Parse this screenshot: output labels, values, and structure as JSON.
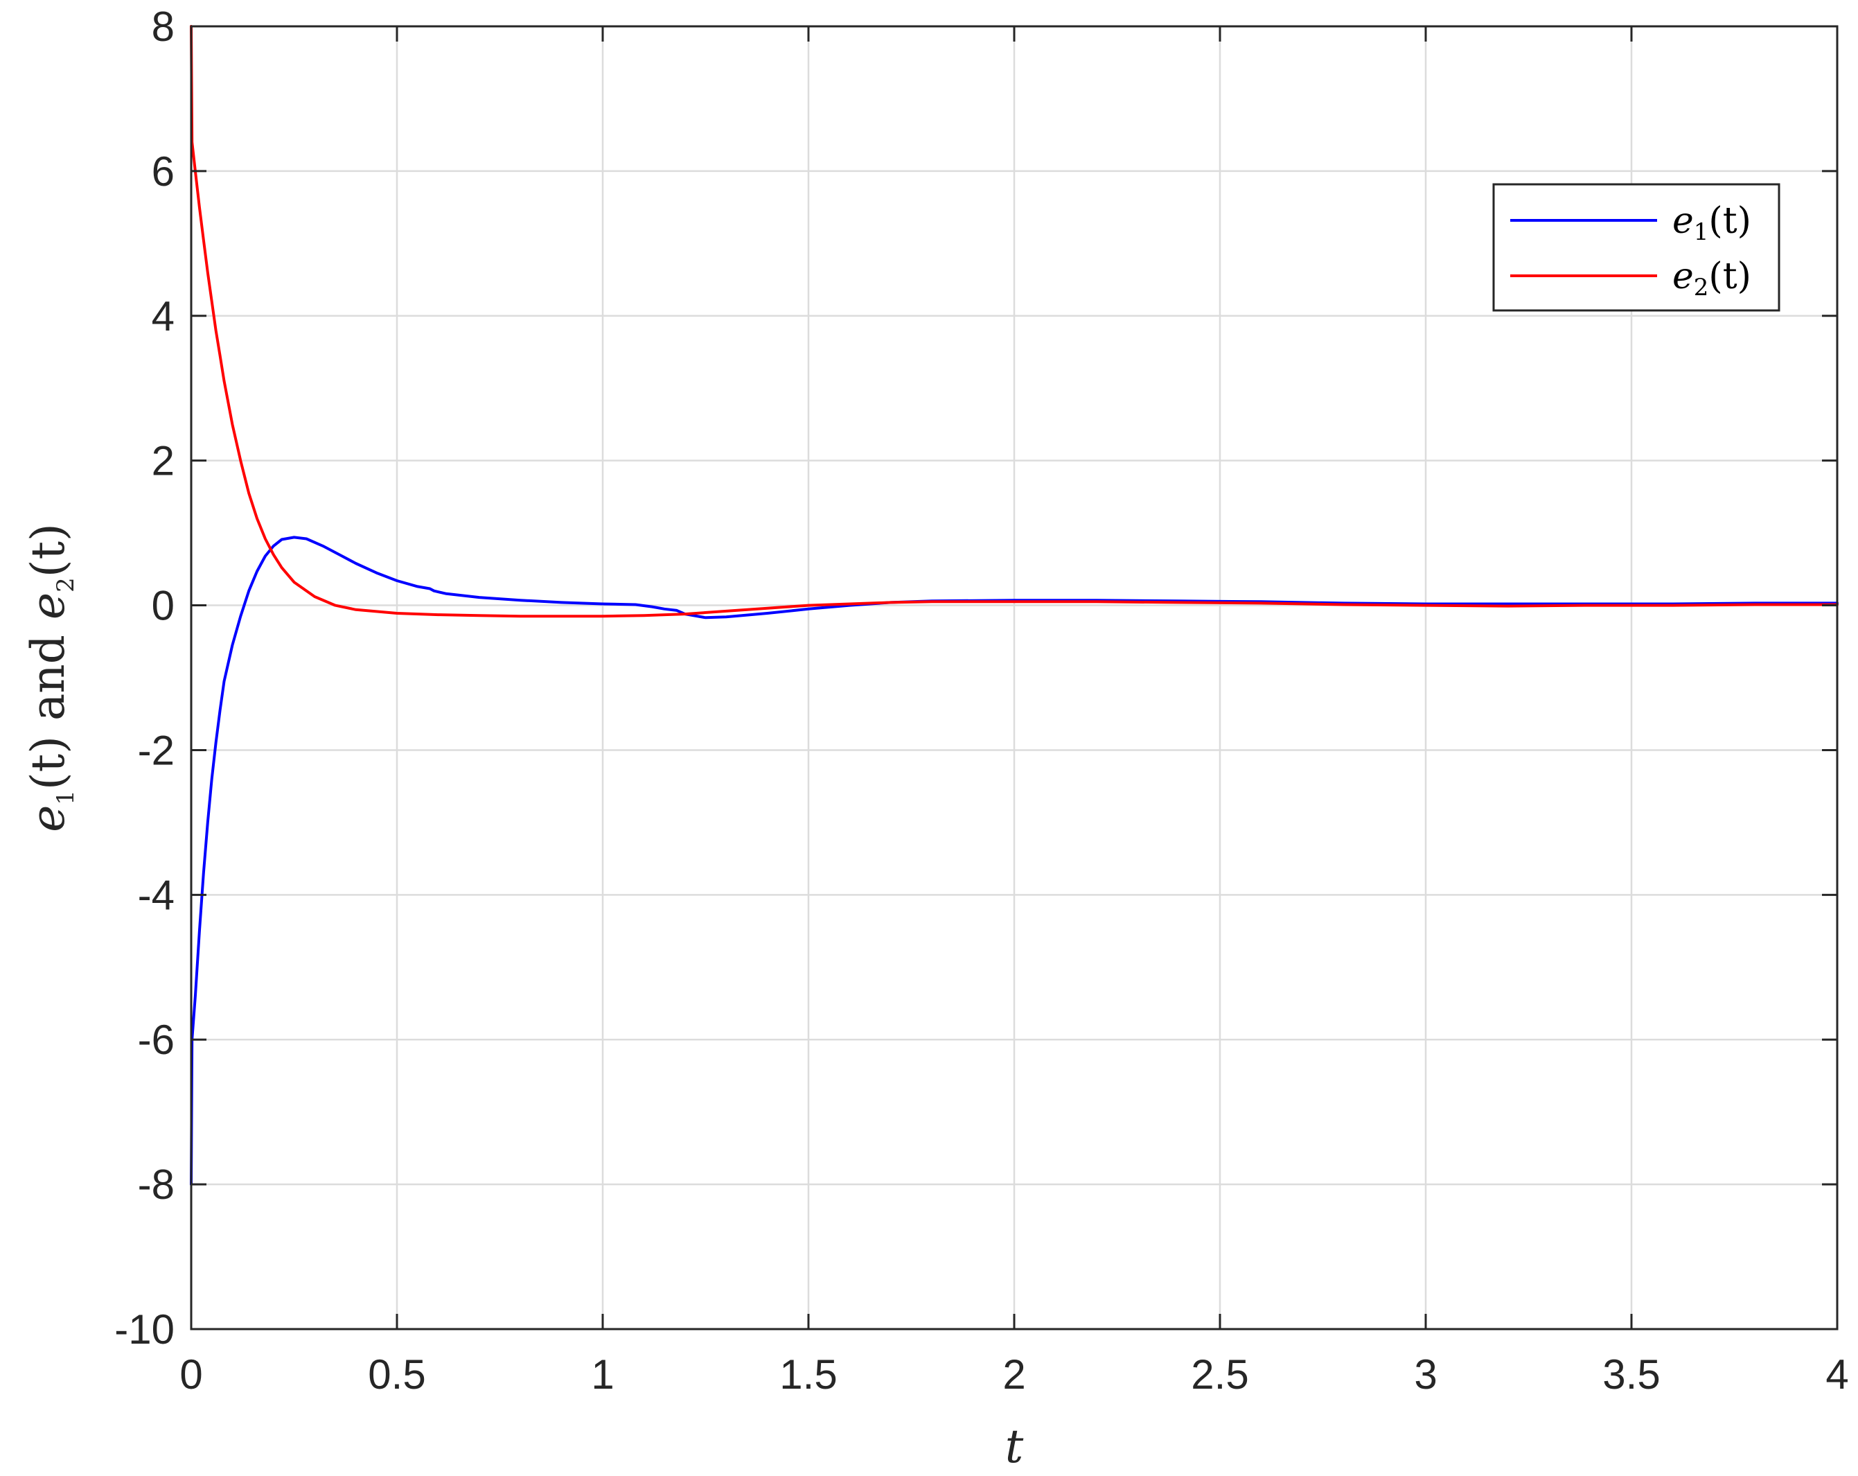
{
  "chart_data": {
    "type": "line",
    "xlabel": "t",
    "ylabel": "e1(t) and e2(t)",
    "ylabel_parts": {
      "a": "e",
      "a_sub": "1",
      "a_arg": "(t)",
      "mid": "and",
      "b": "e",
      "b_sub": "2",
      "b_arg": "(t)"
    },
    "xlim": [
      0,
      4
    ],
    "ylim": [
      -10,
      8
    ],
    "xticks": [
      "0",
      "0.5",
      "1",
      "1.5",
      "2",
      "2.5",
      "3",
      "3.5",
      "4"
    ],
    "yticks": [
      "8",
      "6",
      "4",
      "2",
      "0",
      "-2",
      "-4",
      "-6",
      "-8",
      "-10"
    ],
    "grid": true,
    "legend_position": "top-right",
    "series": [
      {
        "name": "e1(t)",
        "legend_parts": {
          "base": "e",
          "sub": "1",
          "arg": "(t)"
        },
        "color": "#0000ff",
        "points": [
          [
            0,
            -8
          ],
          [
            0.002,
            -6.0
          ],
          [
            0.01,
            -5.4
          ],
          [
            0.02,
            -4.5
          ],
          [
            0.03,
            -3.7
          ],
          [
            0.04,
            -3.0
          ],
          [
            0.05,
            -2.4
          ],
          [
            0.06,
            -1.9
          ],
          [
            0.07,
            -1.45
          ],
          [
            0.08,
            -1.05
          ],
          [
            0.1,
            -0.55
          ],
          [
            0.12,
            -0.15
          ],
          [
            0.14,
            0.2
          ],
          [
            0.16,
            0.47
          ],
          [
            0.18,
            0.68
          ],
          [
            0.2,
            0.82
          ],
          [
            0.22,
            0.91
          ],
          [
            0.25,
            0.94
          ],
          [
            0.28,
            0.92
          ],
          [
            0.32,
            0.82
          ],
          [
            0.36,
            0.7
          ],
          [
            0.4,
            0.58
          ],
          [
            0.45,
            0.45
          ],
          [
            0.5,
            0.34
          ],
          [
            0.55,
            0.26
          ],
          [
            0.58,
            0.23
          ],
          [
            0.59,
            0.2
          ],
          [
            0.62,
            0.16
          ],
          [
            0.7,
            0.11
          ],
          [
            0.8,
            0.07
          ],
          [
            0.9,
            0.04
          ],
          [
            1.0,
            0.02
          ],
          [
            1.08,
            0.01
          ],
          [
            1.12,
            -0.02
          ],
          [
            1.15,
            -0.05
          ],
          [
            1.18,
            -0.07
          ],
          [
            1.2,
            -0.12
          ],
          [
            1.25,
            -0.17
          ],
          [
            1.3,
            -0.16
          ],
          [
            1.4,
            -0.11
          ],
          [
            1.5,
            -0.05
          ],
          [
            1.6,
            0.0
          ],
          [
            1.7,
            0.04
          ],
          [
            1.8,
            0.06
          ],
          [
            2.0,
            0.07
          ],
          [
            2.2,
            0.07
          ],
          [
            2.4,
            0.06
          ],
          [
            2.6,
            0.05
          ],
          [
            2.8,
            0.03
          ],
          [
            3.0,
            0.02
          ],
          [
            3.2,
            0.02
          ],
          [
            3.4,
            0.02
          ],
          [
            3.6,
            0.02
          ],
          [
            3.8,
            0.03
          ],
          [
            4.0,
            0.03
          ]
        ]
      },
      {
        "name": "e2(t)",
        "legend_parts": {
          "base": "e",
          "sub": "2",
          "arg": "(t)"
        },
        "color": "#ff0000",
        "points": [
          [
            0,
            8
          ],
          [
            0.002,
            6.4
          ],
          [
            0.01,
            6.0
          ],
          [
            0.02,
            5.5
          ],
          [
            0.03,
            5.05
          ],
          [
            0.04,
            4.6
          ],
          [
            0.05,
            4.2
          ],
          [
            0.06,
            3.8
          ],
          [
            0.07,
            3.45
          ],
          [
            0.08,
            3.1
          ],
          [
            0.1,
            2.5
          ],
          [
            0.12,
            2.0
          ],
          [
            0.14,
            1.55
          ],
          [
            0.16,
            1.2
          ],
          [
            0.18,
            0.92
          ],
          [
            0.2,
            0.7
          ],
          [
            0.22,
            0.52
          ],
          [
            0.25,
            0.32
          ],
          [
            0.3,
            0.12
          ],
          [
            0.35,
            0.0
          ],
          [
            0.4,
            -0.06
          ],
          [
            0.5,
            -0.11
          ],
          [
            0.6,
            -0.13
          ],
          [
            0.7,
            -0.14
          ],
          [
            0.8,
            -0.15
          ],
          [
            0.9,
            -0.15
          ],
          [
            1.0,
            -0.15
          ],
          [
            1.1,
            -0.14
          ],
          [
            1.2,
            -0.12
          ],
          [
            1.3,
            -0.08
          ],
          [
            1.4,
            -0.04
          ],
          [
            1.5,
            0.0
          ],
          [
            1.6,
            0.02
          ],
          [
            1.7,
            0.04
          ],
          [
            1.8,
            0.05
          ],
          [
            2.0,
            0.05
          ],
          [
            2.2,
            0.05
          ],
          [
            2.4,
            0.04
          ],
          [
            2.6,
            0.03
          ],
          [
            2.8,
            0.01
          ],
          [
            3.0,
            0.0
          ],
          [
            3.2,
            -0.01
          ],
          [
            3.4,
            0.0
          ],
          [
            3.6,
            0.0
          ],
          [
            3.8,
            0.01
          ],
          [
            4.0,
            0.01
          ]
        ]
      }
    ]
  }
}
